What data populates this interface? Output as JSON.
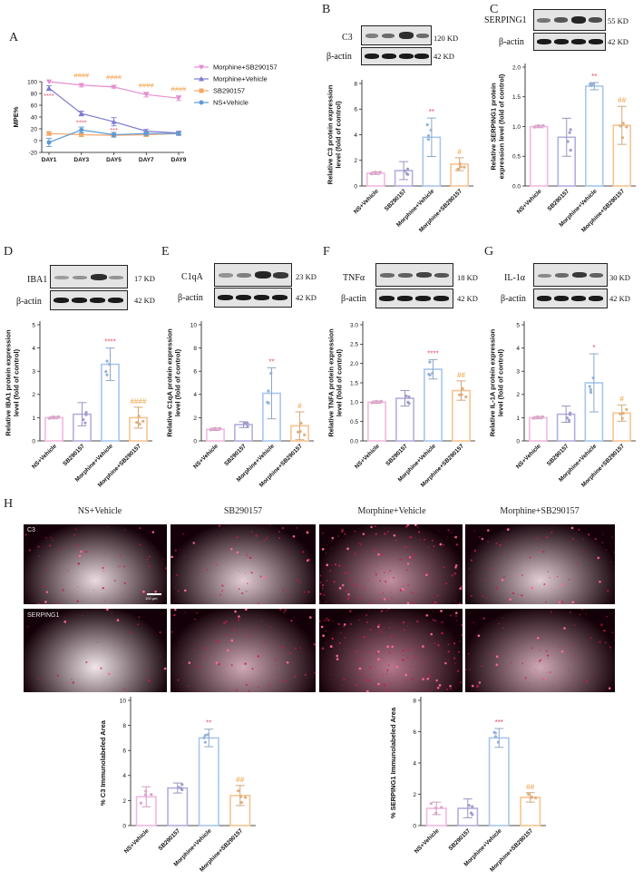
{
  "panels": {
    "A": "A",
    "B": "B",
    "C": "C",
    "D": "D",
    "E": "E",
    "F": "F",
    "G": "G",
    "H": "H"
  },
  "groups": [
    "NS+Vehicle",
    "SB290157",
    "Morphine+Vehicle",
    "Morphine+SB290157"
  ],
  "group_colors": [
    "#f2b8df",
    "#b3aee0",
    "#a7c6ee",
    "#f7c48f"
  ],
  "blots": {
    "B": {
      "target": "C3",
      "target_kd": "120 KD",
      "loading": "β-actin",
      "loading_kd": "42 KD"
    },
    "C": {
      "target": "SERPING1",
      "target_kd": "55 KD",
      "loading": "β-actin",
      "loading_kd": "42 KD"
    },
    "D": {
      "target": "IBA1",
      "target_kd": "17 KD",
      "loading": "β-actin",
      "loading_kd": "42 KD"
    },
    "E": {
      "target": "C1qA",
      "target_kd": "23 KD",
      "loading": "β-actin",
      "loading_kd": "42 KD"
    },
    "F": {
      "target": "TNFα",
      "target_kd": "18 KD",
      "loading": "β-actin",
      "loading_kd": "42 KD"
    },
    "G": {
      "target": "IL-1α",
      "target_kd": "30 KD",
      "loading": "β-actin",
      "loading_kd": "42 KD"
    }
  },
  "micrographs": {
    "row_labels": [
      "C3",
      "SERPING1"
    ],
    "scale_bar": "100 μm"
  },
  "chart_data": [
    {
      "id": "A",
      "type": "line",
      "ylabel": "MPE%",
      "categories": [
        "DAY1",
        "DAY3",
        "DAY5",
        "DAY7",
        "DAY9"
      ],
      "ylim": [
        -20,
        100
      ],
      "yticks": [
        -20,
        0,
        20,
        40,
        60,
        80,
        100
      ],
      "legend": "right",
      "series": [
        {
          "name": "Morphine+SB290157",
          "color": "#e58fd0",
          "marker": "triangle-down",
          "values": [
            100,
            94,
            91,
            78,
            72
          ],
          "errors": [
            0,
            3,
            2,
            4,
            4
          ]
        },
        {
          "name": "Morphine+Vehicle",
          "color": "#7d7bd0",
          "marker": "triangle",
          "values": [
            89,
            46,
            32,
            16,
            13
          ],
          "errors": [
            4,
            4,
            7,
            3,
            3
          ]
        },
        {
          "name": "SB290157",
          "color": "#f3a86a",
          "marker": "square",
          "values": [
            12,
            10,
            9,
            10,
            12
          ],
          "errors": [
            3,
            3,
            3,
            3,
            3
          ]
        },
        {
          "name": "NS+Vehicle",
          "color": "#5e9ad6",
          "marker": "circle",
          "values": [
            -3,
            18,
            10,
            12,
            12
          ],
          "errors": [
            7,
            5,
            4,
            3,
            3
          ]
        }
      ],
      "annotations": [
        {
          "category": "DAY1",
          "text": "****",
          "color": "#e0506a",
          "y": 72
        },
        {
          "category": "DAY3",
          "text": "####",
          "color": "#f19b3d",
          "y": 107
        },
        {
          "category": "DAY3",
          "text": "****",
          "color": "#e0506a",
          "y": 27
        },
        {
          "category": "DAY5",
          "text": "####",
          "color": "#f19b3d",
          "y": 104
        },
        {
          "category": "DAY5",
          "text": "***",
          "color": "#e0506a",
          "y": 14
        },
        {
          "category": "DAY7",
          "text": "####",
          "color": "#f19b3d",
          "y": 90
        },
        {
          "category": "DAY9",
          "text": "####",
          "color": "#f19b3d",
          "y": 84
        }
      ]
    },
    {
      "id": "B",
      "type": "bar",
      "ylabel": "Relative C3 protein expression level (fold of control)",
      "categories": [
        "NS+Vehicle",
        "SB290157",
        "Morphine+Vehicle",
        "Morphine+SB290157"
      ],
      "ylim": [
        0,
        8
      ],
      "yticks": [
        0,
        2,
        4,
        6,
        8
      ],
      "values": [
        1.0,
        1.2,
        3.8,
        1.7
      ],
      "errors": [
        0.1,
        0.7,
        1.5,
        0.5
      ],
      "annotations": [
        {
          "index": 2,
          "text": "**",
          "color": "#e0506a"
        },
        {
          "index": 3,
          "text": "#",
          "color": "#f19b3d"
        }
      ]
    },
    {
      "id": "C",
      "type": "bar",
      "ylabel": "Relative SERPING1 protein expression level (fold of control)",
      "categories": [
        "NS+Vehicle",
        "SB290157",
        "Morphine+Vehicle",
        "Morphine+SB290157"
      ],
      "ylim": [
        0,
        2.0
      ],
      "yticks": [
        0.0,
        0.5,
        1.0,
        1.5,
        2.0
      ],
      "values": [
        1.0,
        0.82,
        1.68,
        1.02
      ],
      "errors": [
        0.02,
        0.32,
        0.06,
        0.32
      ],
      "annotations": [
        {
          "index": 2,
          "text": "**",
          "color": "#e0506a"
        },
        {
          "index": 3,
          "text": "##",
          "color": "#f19b3d"
        }
      ]
    },
    {
      "id": "D",
      "type": "bar",
      "ylabel": "Relative IBA1 protein expression level (fold of control)",
      "categories": [
        "NS+Vehicle",
        "SB290157",
        "Morphine+Vehicle",
        "Morphine+SB290157"
      ],
      "ylim": [
        0,
        5
      ],
      "yticks": [
        0,
        1,
        2,
        3,
        4,
        5
      ],
      "values": [
        1.0,
        1.15,
        3.3,
        1.0
      ],
      "errors": [
        0.05,
        0.5,
        0.7,
        0.45
      ],
      "annotations": [
        {
          "index": 2,
          "text": "****",
          "color": "#e0506a"
        },
        {
          "index": 3,
          "text": "####",
          "color": "#f19b3d"
        }
      ]
    },
    {
      "id": "E",
      "type": "bar",
      "ylabel": "Relative C1qA protein expression level (fold of control)",
      "categories": [
        "NS+Vehicle",
        "SB290157",
        "Morphine+Vehicle",
        "Morphine+SB290157"
      ],
      "ylim": [
        0,
        10
      ],
      "yticks": [
        0,
        2,
        4,
        6,
        8,
        10
      ],
      "values": [
        1.0,
        1.4,
        4.1,
        1.3
      ],
      "errors": [
        0.1,
        0.25,
        2.2,
        1.2
      ],
      "annotations": [
        {
          "index": 2,
          "text": "**",
          "color": "#e0506a"
        },
        {
          "index": 3,
          "text": "#",
          "color": "#f19b3d"
        }
      ]
    },
    {
      "id": "F",
      "type": "bar",
      "ylabel": "Relative TNFA protein expression level (fold of control)",
      "categories": [
        "NS+Vehicle",
        "SB290157",
        "Morphine+Vehicle",
        "Morphine+SB290157"
      ],
      "ylim": [
        0,
        3.0
      ],
      "yticks": [
        0.0,
        0.5,
        1.0,
        1.5,
        2.0,
        2.5,
        3.0
      ],
      "values": [
        1.0,
        1.1,
        1.85,
        1.3
      ],
      "errors": [
        0.03,
        0.2,
        0.25,
        0.25
      ],
      "annotations": [
        {
          "index": 2,
          "text": "****",
          "color": "#e0506a"
        },
        {
          "index": 3,
          "text": "##",
          "color": "#f19b3d"
        }
      ]
    },
    {
      "id": "G",
      "type": "bar",
      "ylabel": "Relative IL-1A protein expression level (fold of control)",
      "categories": [
        "NS+Vehicle",
        "SB290157",
        "Morphine+Vehicle",
        "Morphine+SB290157"
      ],
      "ylim": [
        0,
        5
      ],
      "yticks": [
        0,
        1,
        2,
        3,
        4,
        5
      ],
      "values": [
        1.0,
        1.15,
        2.5,
        1.2
      ],
      "errors": [
        0.05,
        0.35,
        1.25,
        0.35
      ],
      "annotations": [
        {
          "index": 2,
          "text": "*",
          "color": "#e0506a"
        },
        {
          "index": 3,
          "text": "#",
          "color": "#f19b3d"
        }
      ]
    },
    {
      "id": "H1",
      "type": "bar",
      "ylabel": "% C3 Immunolabeled Area",
      "categories": [
        "NS+Vehicle",
        "SB290157",
        "Morphine+Vehicle",
        "Morphine+SB290157"
      ],
      "ylim": [
        0,
        10
      ],
      "yticks": [
        0,
        2,
        4,
        6,
        8,
        10
      ],
      "values": [
        2.3,
        3.0,
        7.0,
        2.4
      ],
      "errors": [
        0.8,
        0.4,
        0.7,
        0.8
      ],
      "annotations": [
        {
          "index": 2,
          "text": "**",
          "color": "#e0506a"
        },
        {
          "index": 3,
          "text": "##",
          "color": "#f19b3d"
        }
      ]
    },
    {
      "id": "H2",
      "type": "bar",
      "ylabel": "% SERPING1 Immunolabeled Area",
      "categories": [
        "NS+Vehicle",
        "SB290157",
        "Morphine+Vehicle",
        "Morphine+SB290157"
      ],
      "ylim": [
        0,
        8
      ],
      "yticks": [
        0,
        2,
        4,
        6,
        8
      ],
      "values": [
        1.1,
        1.1,
        5.6,
        1.8
      ],
      "errors": [
        0.4,
        0.6,
        0.6,
        0.3
      ],
      "annotations": [
        {
          "index": 2,
          "text": "***",
          "color": "#e0506a"
        },
        {
          "index": 3,
          "text": "##",
          "color": "#f19b3d"
        }
      ]
    }
  ]
}
